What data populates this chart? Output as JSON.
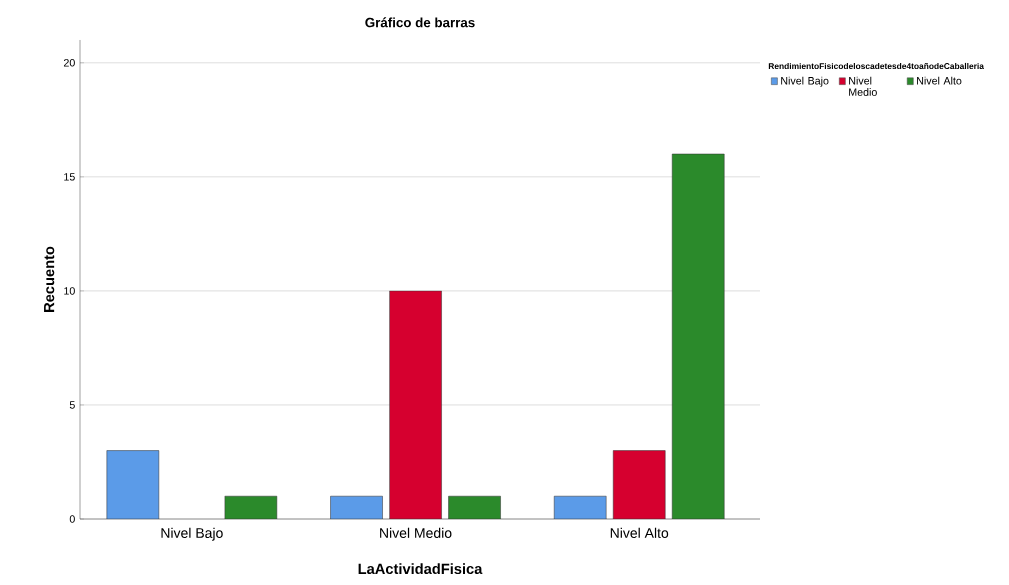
{
  "chart_data": {
    "type": "bar",
    "title": "Gráfico de barras",
    "xlabel": "LaActividadFisica",
    "ylabel": "Recuento",
    "legend_title": "RendimientoFisicodeloscadetesde4toañodeCaballeria",
    "categories": [
      "Nivel Bajo",
      "Nivel Medio",
      "Nivel Alto"
    ],
    "series": [
      {
        "name": "Nivel Bajo",
        "color": "#5b9be8",
        "values": [
          3,
          1,
          1
        ]
      },
      {
        "name": "Nivel Medio",
        "color": "#d6002f",
        "values": [
          0,
          10,
          3
        ]
      },
      {
        "name": "Nivel Alto",
        "color": "#2b8a2b",
        "values": [
          1,
          1,
          16
        ]
      }
    ],
    "ylim": [
      0,
      21
    ],
    "yticks": [
      0,
      5,
      10,
      15,
      20
    ],
    "grid": "y",
    "legend": "top right"
  }
}
